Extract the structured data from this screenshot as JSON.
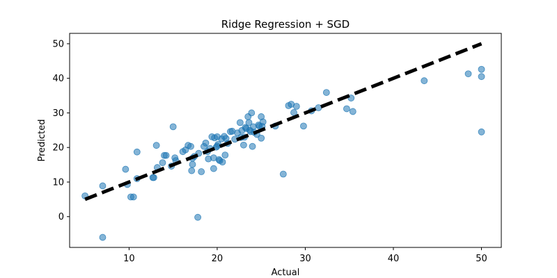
{
  "chart_data": {
    "type": "scatter",
    "title": "Ridge Regression + SGD",
    "xlabel": "Actual",
    "ylabel": "Predicted",
    "xlim": [
      3.25,
      52.25
    ],
    "ylim": [
      -8.9,
      53.0
    ],
    "xticks": [
      10,
      20,
      30,
      40,
      50
    ],
    "yticks": [
      0,
      10,
      20,
      30,
      40,
      50
    ],
    "grid": false,
    "point_color": "#1f77b4",
    "point_alpha": 0.55,
    "line_color": "#000000",
    "reference_line": {
      "x": [
        5,
        50
      ],
      "y": [
        5,
        50
      ],
      "style": "dashed"
    },
    "series": [
      {
        "x": [
          5.0,
          7.0,
          7.0,
          9.6,
          9.8,
          10.2,
          10.5,
          10.9,
          10.9,
          12.7,
          12.8,
          13.1,
          13.2,
          13.8,
          14.0,
          14.2,
          14.8,
          15.0,
          15.2,
          15.3,
          16.1,
          16.4,
          16.7,
          17.0,
          17.1,
          17.2,
          17.2,
          17.4,
          17.8,
          17.9,
          18.2,
          18.5,
          18.7,
          18.9,
          19.0,
          19.2,
          19.4,
          19.6,
          19.6,
          19.7,
          19.9,
          20.0,
          20.0,
          20.1,
          20.2,
          20.3,
          20.5,
          20.6,
          20.8,
          20.9,
          21.0,
          21.2,
          21.5,
          21.7,
          22.0,
          22.3,
          22.6,
          22.7,
          22.8,
          23.0,
          23.1,
          23.2,
          23.3,
          23.5,
          23.6,
          23.7,
          23.8,
          23.9,
          24.0,
          24.1,
          24.2,
          24.5,
          24.7,
          24.8,
          25.0,
          25.0,
          25.1,
          25.2,
          26.6,
          27.5,
          28.1,
          28.4,
          28.7,
          29.0,
          29.8,
          30.7,
          31.5,
          32.4,
          34.7,
          35.2,
          35.4,
          43.5,
          48.5,
          50.0,
          50.0,
          50.0
        ],
        "y": [
          6.0,
          8.9,
          -6.0,
          13.7,
          9.3,
          5.7,
          5.7,
          18.7,
          11.0,
          11.3,
          11.3,
          20.6,
          14.2,
          15.6,
          17.7,
          17.7,
          14.6,
          26.0,
          17.0,
          16.2,
          18.8,
          19.3,
          20.6,
          20.3,
          13.3,
          15.1,
          16.9,
          17.4,
          -0.2,
          18.3,
          13.0,
          20.3,
          21.3,
          18.8,
          16.7,
          19.7,
          23.1,
          17.0,
          13.9,
          22.8,
          20.1,
          20.4,
          23.1,
          20.9,
          16.5,
          16.2,
          22.5,
          15.8,
          23.2,
          17.8,
          22.6,
          21.2,
          24.6,
          24.7,
          22.4,
          24.2,
          27.2,
          22.9,
          24.9,
          20.7,
          23.0,
          25.8,
          25.5,
          28.9,
          27.2,
          25.0,
          24.6,
          30.0,
          20.3,
          26.0,
          24.4,
          23.8,
          26.5,
          26.2,
          28.9,
          22.7,
          26.1,
          27.4,
          26.2,
          12.3,
          32.1,
          32.5,
          30.1,
          31.9,
          26.2,
          30.6,
          31.5,
          35.9,
          31.2,
          34.3,
          30.4,
          39.3,
          41.3,
          42.6,
          40.5,
          24.5
        ]
      }
    ]
  }
}
